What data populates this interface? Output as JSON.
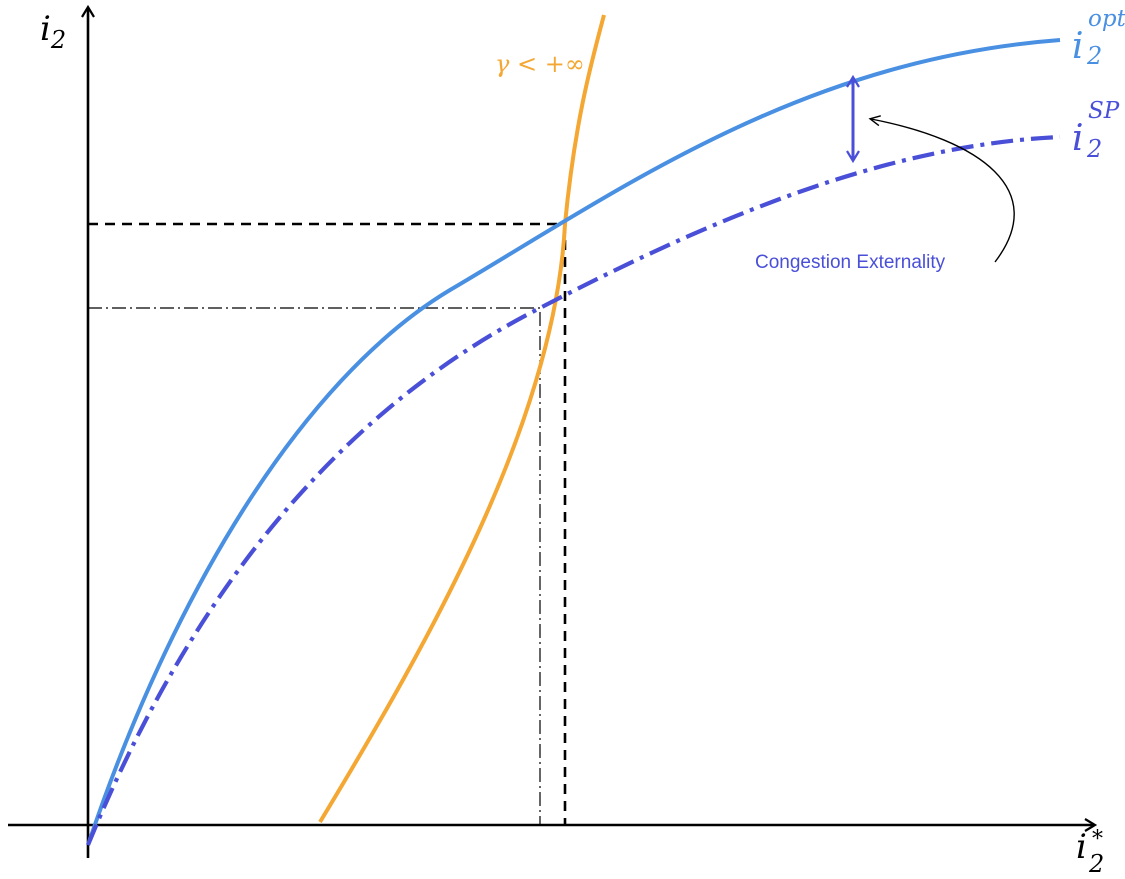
{
  "axes": {
    "y_label": {
      "base": "i",
      "sub": "2"
    },
    "x_label": {
      "base": "i",
      "sub": "2",
      "sup": "*"
    }
  },
  "curves": {
    "opt": {
      "base": "i",
      "sub": "2",
      "sup": "opt",
      "color": "#4a90e2",
      "style": "solid"
    },
    "sp": {
      "base": "i",
      "sub": "2",
      "sup": "SP",
      "color": "#4a4fd8",
      "style": "dash-dot"
    },
    "gamma": {
      "label": "γ < +∞",
      "color": "#f4a732",
      "style": "solid"
    }
  },
  "annotation": {
    "text": "Congestion Externality",
    "color": "#4a4fd8"
  },
  "guides": {
    "opt_intersection": {
      "style": "dashed",
      "color": "#000000"
    },
    "sp_intersection": {
      "style": "dash-dot",
      "color": "#000000"
    }
  }
}
